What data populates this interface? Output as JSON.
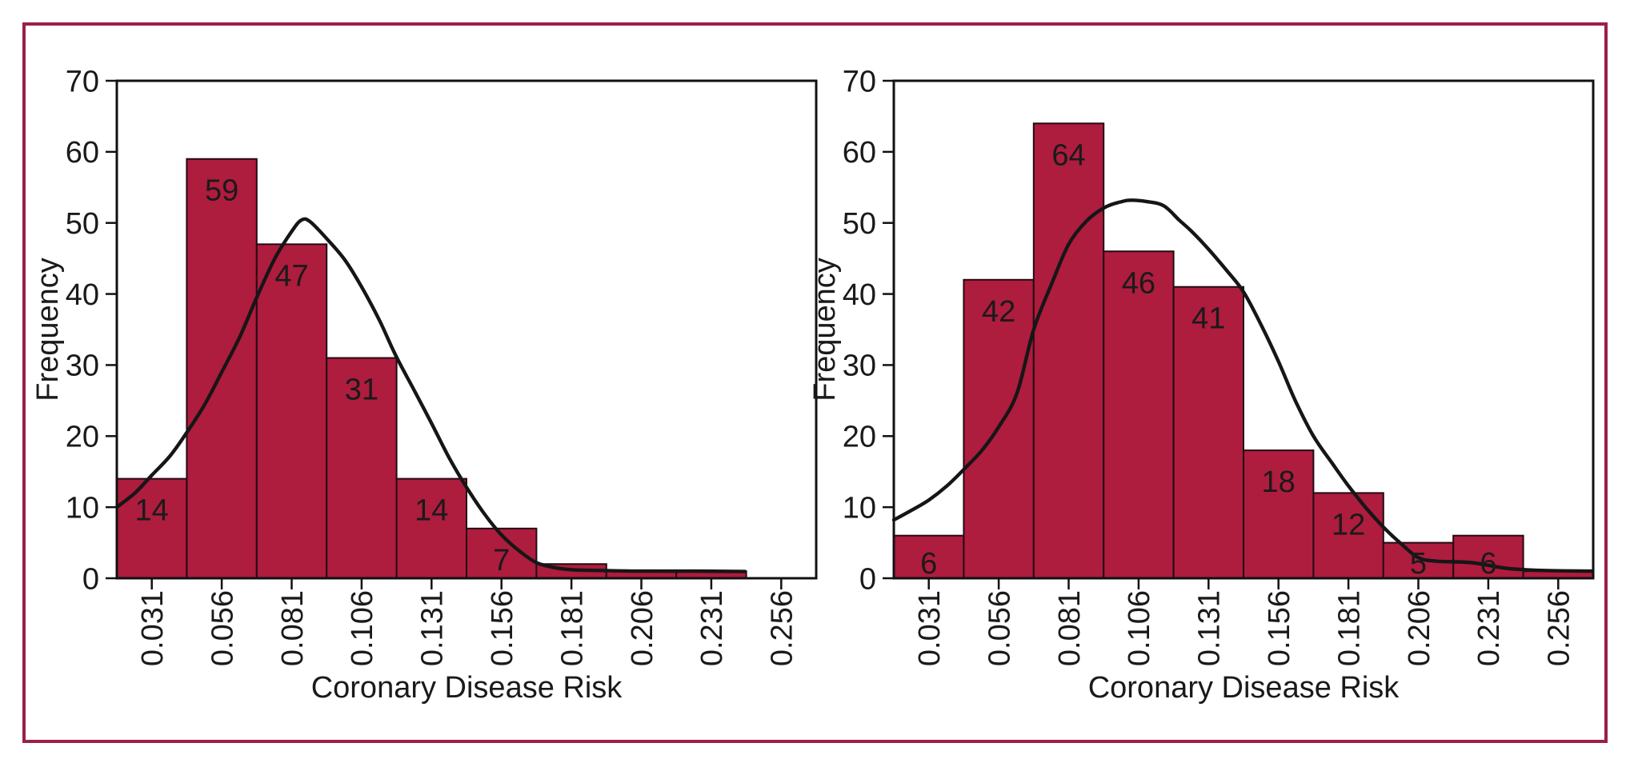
{
  "page": {
    "background": "#ffffff",
    "frame_color": "#9b2045"
  },
  "chart_data": [
    {
      "type": "histogram",
      "panel": "left",
      "xlabel": "Coronary Disease Risk",
      "ylabel": "Frequency",
      "ylim": [
        0,
        70
      ],
      "yticks": [
        0,
        10,
        20,
        30,
        40,
        50,
        60,
        70
      ],
      "bin_width": 0.025,
      "bin_centers": [
        0.031,
        0.056,
        0.081,
        0.106,
        0.131,
        0.156,
        0.181,
        0.206,
        0.231,
        0.256
      ],
      "xtick_labels": [
        "0.031",
        "0.056",
        "0.081",
        "0.106",
        "0.131",
        "0.156",
        "0.181",
        "0.206",
        "0.231",
        "0.256"
      ],
      "values": [
        14,
        59,
        47,
        31,
        14,
        7,
        2,
        1,
        1,
        0
      ],
      "bar_labels": [
        "14",
        "59",
        "47",
        "31",
        "14",
        "7",
        "",
        "",
        "",
        ""
      ],
      "curve": {
        "x": [
          0.0185,
          0.025,
          0.031,
          0.0375,
          0.0435,
          0.05,
          0.056,
          0.0625,
          0.0685,
          0.075,
          0.081,
          0.0845,
          0.0875,
          0.0935,
          0.1,
          0.106,
          0.1125,
          0.118,
          0.125,
          0.131,
          0.1375,
          0.1435,
          0.15,
          0.156,
          0.1625,
          0.1685,
          0.175,
          0.181,
          0.19,
          0.206,
          0.225,
          0.243
        ],
        "y": [
          10,
          12,
          14.5,
          17.2,
          20.5,
          24.5,
          29,
          34,
          39.5,
          45,
          48.8,
          50.4,
          50.2,
          47.8,
          44.8,
          41,
          36.2,
          31.5,
          26.3,
          21.8,
          16.8,
          12.8,
          9,
          6.1,
          3.8,
          2.2,
          1.5,
          1.2,
          1.1,
          1.0,
          1.0,
          0.95
        ]
      },
      "colors": {
        "bar_fill": "#ae1c3e",
        "bar_stroke": "#230a12",
        "curve": "#161616",
        "axis": "#111111",
        "text": "#1a1a1a",
        "bar_label": "#ffffff"
      }
    },
    {
      "type": "histogram",
      "panel": "right",
      "xlabel": "Coronary Disease Risk",
      "ylabel": "Frequency",
      "ylim": [
        0,
        70
      ],
      "yticks": [
        0,
        10,
        20,
        30,
        40,
        50,
        60,
        70
      ],
      "bin_width": 0.025,
      "bin_centers": [
        0.031,
        0.056,
        0.081,
        0.106,
        0.131,
        0.156,
        0.181,
        0.206,
        0.231,
        0.256
      ],
      "xtick_labels": [
        "0.031",
        "0.056",
        "0.081",
        "0.106",
        "0.131",
        "0.156",
        "0.181",
        "0.206",
        "0.231",
        "0.256"
      ],
      "values": [
        6,
        42,
        64,
        46,
        41,
        18,
        12,
        5,
        6,
        1
      ],
      "bar_labels": [
        "6",
        "42",
        "64",
        "46",
        "41",
        "18",
        "12",
        "5",
        "6",
        ""
      ],
      "curve": {
        "x": [
          0.0185,
          0.025,
          0.031,
          0.0375,
          0.0435,
          0.05,
          0.056,
          0.0625,
          0.0685,
          0.075,
          0.081,
          0.0875,
          0.094,
          0.1,
          0.1035,
          0.109,
          0.115,
          0.1205,
          0.125,
          0.131,
          0.1375,
          0.1435,
          0.15,
          0.156,
          0.162,
          0.1685,
          0.175,
          0.181,
          0.1875,
          0.194,
          0.2,
          0.206,
          0.2125,
          0.225,
          0.2375,
          0.25,
          0.268
        ],
        "y": [
          8.2,
          9.6,
          11,
          13,
          15.3,
          18,
          21.3,
          26,
          35,
          41.5,
          47,
          50.3,
          52.2,
          53.0,
          53.2,
          53.0,
          52.4,
          50.4,
          48.8,
          46.3,
          43.3,
          40.3,
          35.5,
          30.5,
          25,
          20,
          16.3,
          13,
          9.8,
          7,
          4.8,
          2.9,
          2.4,
          2.2,
          1.4,
          1.1,
          1.0
        ]
      },
      "colors": {
        "bar_fill": "#ae1c3e",
        "bar_stroke": "#230a12",
        "curve": "#161616",
        "axis": "#111111",
        "text": "#1a1a1a",
        "bar_label": "#ffffff"
      }
    }
  ]
}
